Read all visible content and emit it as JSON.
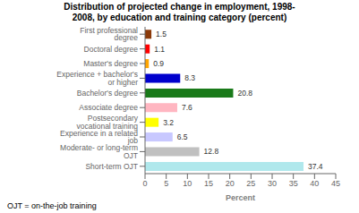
{
  "chart_data": {
    "type": "bar",
    "orientation": "horizontal",
    "title": "Distribution of projected change in employment, 1998-\n2008, by education and training category (percent)",
    "categories": [
      "Short-term OJT",
      "Moderate- or long-term OJT",
      "Experience in a related job",
      "Postsecondary vocational training",
      "Associate degree",
      "Bachelor's degree",
      "Experience + bachelor's or higher",
      "Master's degree",
      "Doctoral degree",
      "First professional degree"
    ],
    "values": [
      37.4,
      12.8,
      6.5,
      3.2,
      7.6,
      20.8,
      8.3,
      0.9,
      1.1,
      1.5
    ],
    "colors": [
      "#b0e8ec",
      "#c0c0c0",
      "#c8c8ff",
      "#ffff00",
      "#ffb6c1",
      "#1a7a1a",
      "#0000cd",
      "#ffa500",
      "#ff0000",
      "#8B3A0A"
    ],
    "xlabel": "Percent",
    "annotations": [
      "OJT = on-the-job training"
    ],
    "xlim": [
      0,
      45
    ],
    "xticks": [
      0,
      5,
      10,
      15,
      20,
      25,
      30,
      35,
      40,
      45
    ],
    "grid": false,
    "data_labels": true
  }
}
